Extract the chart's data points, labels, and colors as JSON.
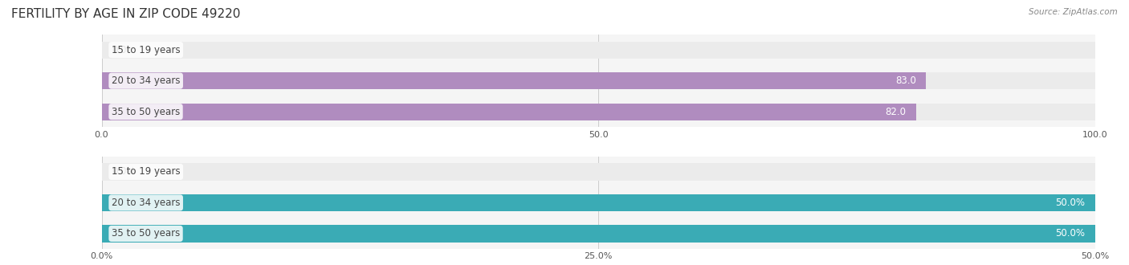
{
  "title": "FERTILITY BY AGE IN ZIP CODE 49220",
  "source": "Source: ZipAtlas.com",
  "top_chart": {
    "categories": [
      "15 to 19 years",
      "20 to 34 years",
      "35 to 50 years"
    ],
    "values": [
      0.0,
      83.0,
      82.0
    ],
    "xlim": [
      0,
      100
    ],
    "xticks": [
      0.0,
      50.0,
      100.0
    ],
    "bar_color": "#b08cbf",
    "label_color_inside": "#ffffff",
    "label_color_outside": "#555555",
    "bg_bar_color": "#ebebeb",
    "bar_height": 0.55
  },
  "bottom_chart": {
    "categories": [
      "15 to 19 years",
      "20 to 34 years",
      "35 to 50 years"
    ],
    "values": [
      0.0,
      50.0,
      50.0
    ],
    "xlim": [
      0,
      50
    ],
    "xticks": [
      0.0,
      25.0,
      50.0
    ],
    "xtick_labels": [
      "0.0%",
      "25.0%",
      "50.0%"
    ],
    "bar_color": "#3aabb5",
    "label_color_inside": "#ffffff",
    "label_color_outside": "#555555",
    "bg_bar_color": "#ebebeb",
    "bar_height": 0.55
  },
  "label_font_size": 8.5,
  "category_font_size": 8.5,
  "title_font_size": 11,
  "title_color": "#333333",
  "tick_color": "#555555",
  "bg_color": "#f5f5f5"
}
